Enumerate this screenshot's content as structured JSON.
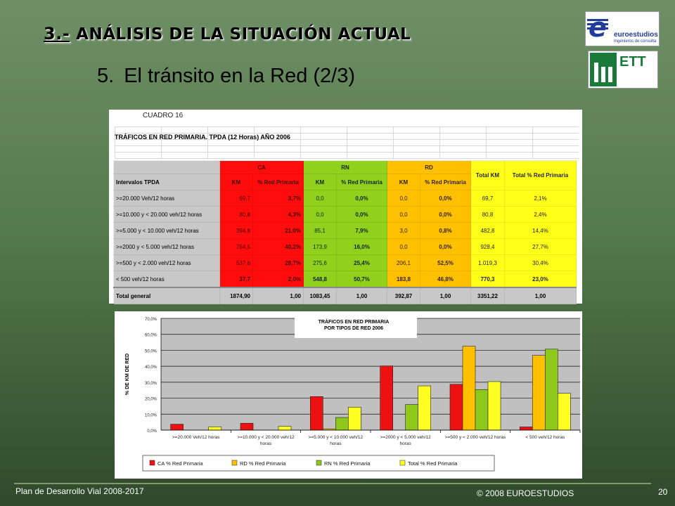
{
  "header": {
    "section_num": "3.-",
    "section_title": "ANÁLISIS DE LA SITUACIÓN ACTUAL",
    "sub_num": "5.",
    "sub_title": "El tránsito en la Red (2/3)"
  },
  "logos": {
    "euro_letter": "e",
    "euro_name": "euroestudios",
    "euro_tag": "Ingenieros de consulta",
    "ett": "ETT"
  },
  "table": {
    "cuadro": "CUADRO 16",
    "title": "TRÁFICOS EN RED PRIMARIA. TPDA (12 Horas) AÑO 2006",
    "groups": {
      "ca": "CA",
      "rn": "RN",
      "rd": "RD",
      "total_km": "Total KM",
      "total_pct": "Total % Red Primaria"
    },
    "row_header": "Intervalos TPDA",
    "sub_km": "KM",
    "sub_pct": "% Red Primaria",
    "rows": [
      {
        "label": ">=20.000 Veh/12 horas",
        "ca_km": "69,7",
        "ca_pct": "3,7%",
        "rn_km": "0,0",
        "rn_pct": "0,0%",
        "rd_km": "0,0",
        "rd_pct": "0,0%",
        "tkm": "69,7",
        "tpct": "2,1%"
      },
      {
        "label": ">=10.000 y < 20.000 veh/12 horas",
        "ca_km": "80,8",
        "ca_pct": "4,3%",
        "rn_km": "0,0",
        "rn_pct": "0,0%",
        "rd_km": "0,0",
        "rd_pct": "0,0%",
        "tkm": "80,8",
        "tpct": "2,4%"
      },
      {
        "label": ">=5.000 y < 10.000 veh/12 horas",
        "ca_km": "394,8",
        "ca_pct": "21,0%",
        "rn_km": "85,1",
        "rn_pct": "7,9%",
        "rd_km": "3,0",
        "rd_pct": "0,8%",
        "tkm": "482,8",
        "tpct": "14,4%"
      },
      {
        "label": ">=2000 y < 5.000 veh/12 horas",
        "ca_km": "754,5",
        "ca_pct": "40,2%",
        "rn_km": "173,9",
        "rn_pct": "16,0%",
        "rd_km": "0,0",
        "rd_pct": "0,0%",
        "tkm": "928,4",
        "tpct": "27,7%"
      },
      {
        "label": ">=500 y < 2.000 veh/12 horas",
        "ca_km": "537,6",
        "ca_pct": "28,7%",
        "rn_km": "275,6",
        "rn_pct": "25,4%",
        "rd_km": "206,1",
        "rd_pct": "52,5%",
        "tkm": "1.019,3",
        "tpct": "30,4%"
      },
      {
        "label": "< 500  veh/12 horas",
        "ca_km": "37,7",
        "ca_pct": "2,0%",
        "rn_km": "548,8",
        "rn_pct": "50,7%",
        "rd_km": "183,8",
        "rd_pct": "46,8%",
        "tkm": "770,3",
        "tpct": "23,0%"
      }
    ],
    "total": {
      "label": "Total general",
      "ca_km": "1874,90",
      "ca_pct": "1,00",
      "rn_km": "1083,45",
      "rn_pct": "1,00",
      "rd_km": "392,87",
      "rd_pct": "1,00",
      "tkm": "3351,22",
      "tpct": "1,00"
    }
  },
  "chart_data": {
    "type": "bar",
    "title": "TRÁFICOS EN RED PRIMARIA POR TIPOS DE RED 2006",
    "title_lines": [
      "TRÁFICOS EN RED PRIMARIA",
      "POR TIPOS DE RED 2006"
    ],
    "ylabel": "% DE KM DE RED",
    "ylim": [
      0,
      70
    ],
    "yticks": [
      "0,0%",
      "10,0%",
      "20,0%",
      "30,0%",
      "40,0%",
      "50,0%",
      "60,0%",
      "70,0%"
    ],
    "categories": [
      [
        ">=20.000 Veh/12 horas"
      ],
      [
        ">=10.000 y < 20.000 veh/12",
        "horas"
      ],
      [
        ">=5.000 y < 10.000 veh/12",
        "horas"
      ],
      [
        ">=2000 y < 5.000 veh/12",
        "horas"
      ],
      [
        ">=500 y < 2.000 veh/12 horas"
      ],
      [
        "< 500  veh/12 horas"
      ]
    ],
    "series": [
      {
        "name": "CA % Red Primaria",
        "color": "#ee1111",
        "values": [
          3.7,
          4.3,
          21.0,
          40.2,
          28.7,
          2.0
        ]
      },
      {
        "name": "RD % Red Primaria",
        "color": "#ffc000",
        "values": [
          0.0,
          0.0,
          0.8,
          0.0,
          52.5,
          46.8
        ]
      },
      {
        "name": "RN % Red Primaria",
        "color": "#8dc81a",
        "values": [
          0.0,
          0.0,
          7.9,
          16.0,
          25.4,
          50.7
        ]
      },
      {
        "name": "Total % Red Primaria",
        "color": "#ffff22",
        "values": [
          2.1,
          2.4,
          14.4,
          27.7,
          30.4,
          23.0
        ]
      }
    ],
    "grid": true,
    "plot_bg": "#c0c0c0",
    "legend": "bottom"
  },
  "footer": {
    "left": "Plan de Desarrollo Vial 2008-2017",
    "center": "© 2008 EUROESTUDIOS",
    "page": "20"
  }
}
